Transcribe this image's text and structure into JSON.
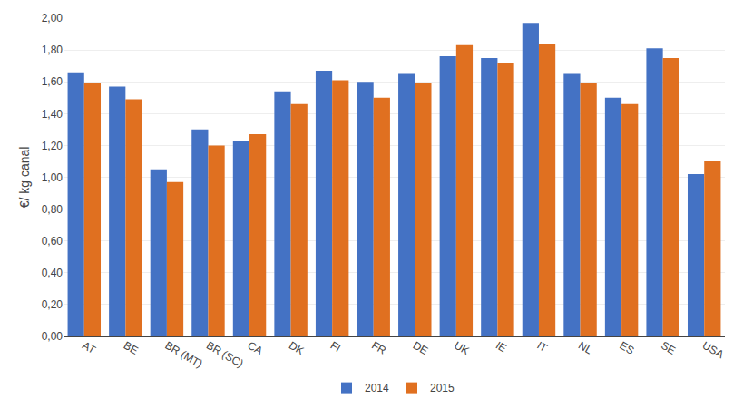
{
  "chart_data": {
    "type": "bar",
    "categories": [
      "AT",
      "BE",
      "BR (MT)",
      "BR (SC)",
      "CA",
      "DK",
      "FI",
      "FR",
      "DE",
      "UK",
      "IE",
      "IT",
      "NL",
      "ES",
      "SE",
      "USA"
    ],
    "series": [
      {
        "name": "2014",
        "color": "#4472C4",
        "values": [
          1.66,
          1.57,
          1.05,
          1.3,
          1.23,
          1.54,
          1.67,
          1.6,
          1.65,
          1.76,
          1.75,
          1.97,
          1.65,
          1.5,
          1.81,
          1.02
        ]
      },
      {
        "name": "2015",
        "color": "#E07020",
        "values": [
          1.59,
          1.49,
          0.97,
          1.2,
          1.27,
          1.46,
          1.61,
          1.5,
          1.59,
          1.83,
          1.72,
          1.84,
          1.59,
          1.46,
          1.75,
          1.1
        ]
      }
    ],
    "ylabel": "€/ kg canal",
    "ylim": [
      0.0,
      2.0
    ],
    "yticks": [
      {
        "value": 0.0,
        "label": "0,00"
      },
      {
        "value": 0.2,
        "label": "0,20"
      },
      {
        "value": 0.4,
        "label": "0,40"
      },
      {
        "value": 0.6,
        "label": "0,60"
      },
      {
        "value": 0.8,
        "label": "0,80"
      },
      {
        "value": 1.0,
        "label": "1,00"
      },
      {
        "value": 1.2,
        "label": "1,20"
      },
      {
        "value": 1.4,
        "label": "1,40"
      },
      {
        "value": 1.6,
        "label": "1,60"
      },
      {
        "value": 1.8,
        "label": "1,80"
      },
      {
        "value": 2.0,
        "label": "2,00"
      }
    ],
    "grid": true,
    "legend": "bottom"
  }
}
